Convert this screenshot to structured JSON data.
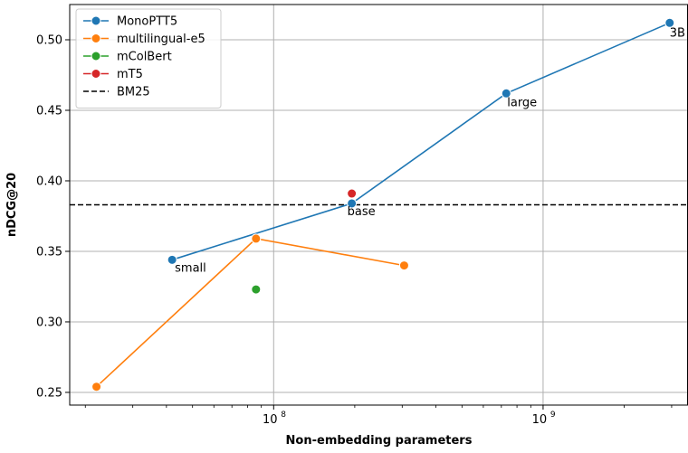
{
  "chart_data": {
    "type": "scatter",
    "xlabel": "Non-embedding parameters",
    "ylabel": "nDCG@20",
    "xscale": "log",
    "xlim": [
      17500000,
      3450000000
    ],
    "ylim": [
      0.241,
      0.525
    ],
    "yticks": [
      0.25,
      0.3,
      0.35,
      0.4,
      0.45,
      0.5
    ],
    "ytick_labels": [
      "0.25",
      "0.30",
      "0.35",
      "0.40",
      "0.45",
      "0.50"
    ],
    "xticks": [
      100000000,
      1000000000
    ],
    "xtick_labels": [
      {
        "base": "10",
        "exp": "8"
      },
      {
        "base": "10",
        "exp": "9"
      }
    ],
    "grid": true,
    "legend_position": "upper-left",
    "series": [
      {
        "name": "MonoPTT5",
        "color": "#1f77b4",
        "line": true,
        "points": [
          {
            "x": 42000000,
            "y": 0.344,
            "label": "small"
          },
          {
            "x": 195000000,
            "y": 0.384,
            "label": "base"
          },
          {
            "x": 730000000,
            "y": 0.462,
            "label": "large"
          },
          {
            "x": 2950000000,
            "y": 0.512,
            "label": "3B"
          }
        ]
      },
      {
        "name": "multilingual-e5",
        "color": "#ff7f0e",
        "line": true,
        "points": [
          {
            "x": 22000000,
            "y": 0.254
          },
          {
            "x": 86000000,
            "y": 0.359
          },
          {
            "x": 305000000,
            "y": 0.34
          }
        ]
      },
      {
        "name": "mColBert",
        "color": "#2ca02c",
        "line": false,
        "points": [
          {
            "x": 86000000,
            "y": 0.323
          }
        ]
      },
      {
        "name": "mT5",
        "color": "#d62728",
        "line": false,
        "points": [
          {
            "x": 195000000,
            "y": 0.391
          }
        ]
      }
    ],
    "hlines": [
      {
        "name": "BM25",
        "y": 0.383,
        "color": "#000000",
        "style": "dashed"
      }
    ]
  }
}
